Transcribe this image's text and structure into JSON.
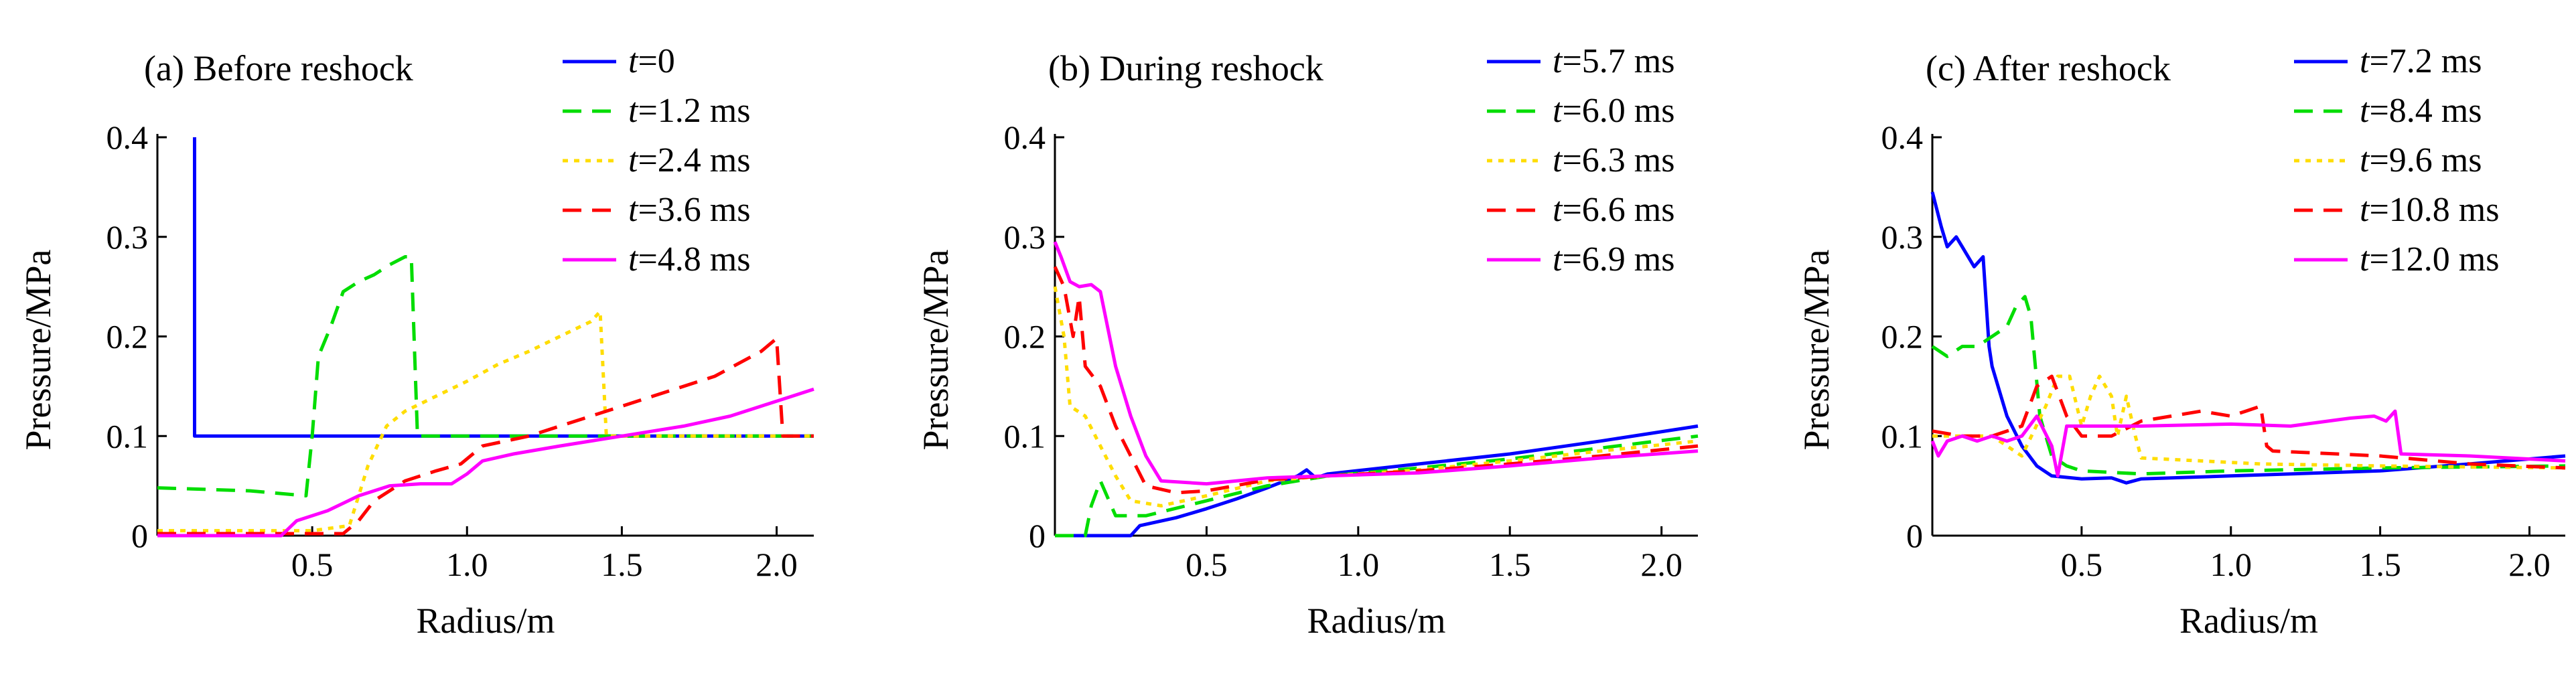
{
  "page": {
    "background": "#ffffff"
  },
  "chart_data": [
    {
      "type": "line",
      "title": "(a) Before reshock",
      "xlabel": "Radius/m",
      "ylabel": "Pressure/MPa",
      "xlim": [
        0,
        2.12
      ],
      "ylim": [
        0,
        0.4
      ],
      "xticks": [
        0.5,
        1.0,
        1.5,
        2.0
      ],
      "xtick_labels": [
        "0.5",
        "1.0",
        "1.5",
        "2.0"
      ],
      "yticks": [
        0,
        0.1,
        0.2,
        0.3,
        0.4
      ],
      "ytick_labels": [
        "0",
        "0.1",
        "0.2",
        "0.3",
        "0.4"
      ],
      "grid": false,
      "legend": "top-right-outside",
      "series": [
        {
          "var": "t",
          "eq": "=",
          "value": "0",
          "color": "#0000ff",
          "dash": "solid",
          "x": [
            0.12,
            0.12,
            0.12,
            2.12
          ],
          "y": [
            0.4,
            0.1,
            0.1,
            0.1
          ]
        },
        {
          "var": "t",
          "eq": "=",
          "value": "1.2 ms",
          "color": "#00dd00",
          "dash": "dashed",
          "x": [
            0.0,
            0.3,
            0.48,
            0.5,
            0.52,
            0.56,
            0.6,
            0.65,
            0.7,
            0.75,
            0.8,
            0.82,
            0.84,
            2.12
          ],
          "y": [
            0.048,
            0.045,
            0.04,
            0.1,
            0.18,
            0.21,
            0.245,
            0.255,
            0.262,
            0.272,
            0.28,
            0.28,
            0.1,
            0.1
          ]
        },
        {
          "var": "t",
          "eq": "=",
          "value": "2.4 ms",
          "color": "#ffdd00",
          "dash": "dotted",
          "x": [
            0.0,
            0.5,
            0.62,
            0.68,
            0.74,
            0.8,
            0.9,
            1.0,
            1.1,
            1.2,
            1.3,
            1.4,
            1.43,
            1.45,
            2.12
          ],
          "y": [
            0.005,
            0.005,
            0.01,
            0.07,
            0.11,
            0.125,
            0.14,
            0.155,
            0.172,
            0.185,
            0.2,
            0.215,
            0.225,
            0.1,
            0.1
          ]
        },
        {
          "var": "t",
          "eq": "=",
          "value": "3.6 ms",
          "color": "#ff0000",
          "dash": "dashed",
          "x": [
            0.0,
            0.6,
            0.65,
            0.7,
            0.8,
            0.9,
            0.98,
            1.05,
            1.2,
            1.4,
            1.6,
            1.8,
            1.95,
            2.0,
            2.02,
            2.12
          ],
          "y": [
            0.002,
            0.002,
            0.015,
            0.035,
            0.055,
            0.065,
            0.072,
            0.09,
            0.1,
            0.12,
            0.14,
            0.16,
            0.185,
            0.198,
            0.1,
            0.1
          ]
        },
        {
          "var": "t",
          "eq": "=",
          "value": "4.8 ms",
          "color": "#ff00ff",
          "dash": "solid",
          "x": [
            0.0,
            0.4,
            0.45,
            0.55,
            0.65,
            0.75,
            0.85,
            0.95,
            1.0,
            1.05,
            1.15,
            1.3,
            1.5,
            1.7,
            1.85,
            1.95,
            2.05,
            2.12
          ],
          "y": [
            0.0,
            0.0,
            0.015,
            0.025,
            0.04,
            0.05,
            0.052,
            0.052,
            0.062,
            0.075,
            0.082,
            0.09,
            0.1,
            0.11,
            0.12,
            0.13,
            0.14,
            0.147
          ]
        }
      ]
    },
    {
      "type": "line",
      "title": "(b) During reshock",
      "xlabel": "Radius/m",
      "ylabel": "Pressure/MPa",
      "xlim": [
        0,
        2.12
      ],
      "ylim": [
        0,
        0.4
      ],
      "xticks": [
        0.5,
        1.0,
        1.5,
        2.0
      ],
      "xtick_labels": [
        "0.5",
        "1.0",
        "1.5",
        "2.0"
      ],
      "yticks": [
        0,
        0.1,
        0.2,
        0.3,
        0.4
      ],
      "ytick_labels": [
        "0",
        "0.1",
        "0.2",
        "0.3",
        "0.4"
      ],
      "grid": false,
      "legend": "top-right-outside",
      "series": [
        {
          "var": "t",
          "eq": "=",
          "value": "5.7 ms",
          "color": "#0000ff",
          "dash": "solid",
          "x": [
            0.0,
            0.25,
            0.28,
            0.4,
            0.5,
            0.6,
            0.7,
            0.8,
            0.83,
            0.86,
            0.9,
            1.2,
            1.5,
            1.8,
            2.12
          ],
          "y": [
            0.0,
            0.0,
            0.01,
            0.018,
            0.027,
            0.037,
            0.048,
            0.06,
            0.066,
            0.058,
            0.062,
            0.072,
            0.082,
            0.095,
            0.11
          ]
        },
        {
          "var": "t",
          "eq": "=",
          "value": "6.0 ms",
          "color": "#00dd00",
          "dash": "dashed",
          "x": [
            0.0,
            0.1,
            0.12,
            0.15,
            0.2,
            0.3,
            0.5,
            0.7,
            0.9,
            1.2,
            1.5,
            1.8,
            2.12
          ],
          "y": [
            0.0,
            0.0,
            0.03,
            0.055,
            0.02,
            0.02,
            0.035,
            0.05,
            0.06,
            0.068,
            0.077,
            0.088,
            0.1
          ]
        },
        {
          "var": "t",
          "eq": "=",
          "value": "6.3 ms",
          "color": "#ffdd00",
          "dash": "dotted",
          "x": [
            0.0,
            0.03,
            0.05,
            0.1,
            0.15,
            0.2,
            0.25,
            0.35,
            0.5,
            0.7,
            0.9,
            1.2,
            1.5,
            1.8,
            2.12
          ],
          "y": [
            0.25,
            0.2,
            0.13,
            0.12,
            0.09,
            0.06,
            0.035,
            0.03,
            0.04,
            0.055,
            0.06,
            0.066,
            0.075,
            0.085,
            0.095
          ]
        },
        {
          "var": "t",
          "eq": "=",
          "value": "6.6 ms",
          "color": "#ff0000",
          "dash": "dashed",
          "x": [
            0.0,
            0.03,
            0.06,
            0.08,
            0.1,
            0.15,
            0.2,
            0.25,
            0.3,
            0.4,
            0.5,
            0.7,
            0.9,
            1.2,
            1.5,
            1.8,
            2.12
          ],
          "y": [
            0.27,
            0.25,
            0.2,
            0.24,
            0.17,
            0.15,
            0.11,
            0.08,
            0.05,
            0.043,
            0.045,
            0.056,
            0.06,
            0.065,
            0.072,
            0.08,
            0.09
          ]
        },
        {
          "var": "t",
          "eq": "=",
          "value": "6.9 ms",
          "color": "#ff00ff",
          "dash": "solid",
          "x": [
            0.0,
            0.02,
            0.05,
            0.08,
            0.12,
            0.15,
            0.2,
            0.25,
            0.3,
            0.35,
            0.5,
            0.7,
            0.9,
            1.2,
            1.5,
            1.8,
            2.12
          ],
          "y": [
            0.295,
            0.28,
            0.255,
            0.25,
            0.252,
            0.245,
            0.17,
            0.12,
            0.08,
            0.055,
            0.052,
            0.058,
            0.06,
            0.063,
            0.07,
            0.078,
            0.085
          ]
        }
      ]
    },
    {
      "type": "line",
      "title": "(c) After reshock",
      "xlabel": "Radius/m",
      "ylabel": "Pressure/MPa",
      "xlim": [
        0,
        2.12
      ],
      "ylim": [
        0,
        0.4
      ],
      "xticks": [
        0.5,
        1.0,
        1.5,
        2.0
      ],
      "xtick_labels": [
        "0.5",
        "1.0",
        "1.5",
        "2.0"
      ],
      "yticks": [
        0,
        0.1,
        0.2,
        0.3,
        0.4
      ],
      "ytick_labels": [
        "0",
        "0.1",
        "0.2",
        "0.3",
        "0.4"
      ],
      "grid": false,
      "legend": "top-right-outside",
      "series": [
        {
          "var": "t",
          "eq": "=",
          "value": "7.2 ms",
          "color": "#0000ff",
          "dash": "solid",
          "x": [
            0.0,
            0.03,
            0.05,
            0.08,
            0.1,
            0.14,
            0.17,
            0.19,
            0.2,
            0.25,
            0.3,
            0.35,
            0.4,
            0.5,
            0.6,
            0.65,
            0.7,
            1.0,
            1.5,
            1.8,
            2.12
          ],
          "y": [
            0.345,
            0.31,
            0.29,
            0.3,
            0.29,
            0.27,
            0.28,
            0.19,
            0.17,
            0.12,
            0.09,
            0.07,
            0.06,
            0.057,
            0.058,
            0.053,
            0.057,
            0.06,
            0.065,
            0.072,
            0.08
          ]
        },
        {
          "var": "t",
          "eq": "=",
          "value": "8.4 ms",
          "color": "#00dd00",
          "dash": "dashed",
          "x": [
            0.0,
            0.05,
            0.1,
            0.15,
            0.2,
            0.25,
            0.28,
            0.31,
            0.33,
            0.36,
            0.4,
            0.45,
            0.5,
            0.7,
            1.0,
            1.5,
            2.12
          ],
          "y": [
            0.19,
            0.18,
            0.19,
            0.19,
            0.2,
            0.21,
            0.23,
            0.24,
            0.22,
            0.12,
            0.08,
            0.07,
            0.065,
            0.062,
            0.065,
            0.068,
            0.07
          ]
        },
        {
          "var": "t",
          "eq": "=",
          "value": "9.6 ms",
          "color": "#ffdd00",
          "dash": "dotted",
          "x": [
            0.0,
            0.2,
            0.3,
            0.38,
            0.42,
            0.46,
            0.5,
            0.53,
            0.56,
            0.6,
            0.62,
            0.65,
            0.68,
            0.7,
            0.9,
            1.1,
            1.5,
            2.12
          ],
          "y": [
            0.1,
            0.1,
            0.08,
            0.13,
            0.16,
            0.16,
            0.11,
            0.14,
            0.16,
            0.14,
            0.1,
            0.14,
            0.1,
            0.078,
            0.075,
            0.072,
            0.07,
            0.068
          ]
        },
        {
          "var": "t",
          "eq": "=",
          "value": "10.8 ms",
          "color": "#ff0000",
          "dash": "dashed",
          "x": [
            0.0,
            0.1,
            0.2,
            0.3,
            0.35,
            0.4,
            0.45,
            0.5,
            0.6,
            0.7,
            0.8,
            0.9,
            1.0,
            1.05,
            1.1,
            1.12,
            1.14,
            1.5,
            1.8,
            2.12
          ],
          "y": [
            0.105,
            0.1,
            0.1,
            0.11,
            0.15,
            0.16,
            0.12,
            0.1,
            0.1,
            0.115,
            0.12,
            0.125,
            0.12,
            0.125,
            0.13,
            0.09,
            0.085,
            0.08,
            0.072,
            0.068
          ]
        },
        {
          "var": "t",
          "eq": "=",
          "value": "12.0 ms",
          "color": "#ff00ff",
          "dash": "solid",
          "x": [
            0.0,
            0.02,
            0.05,
            0.1,
            0.15,
            0.2,
            0.25,
            0.3,
            0.35,
            0.4,
            0.42,
            0.45,
            0.5,
            0.7,
            1.0,
            1.2,
            1.4,
            1.48,
            1.52,
            1.55,
            1.57,
            1.8,
            2.12
          ],
          "y": [
            0.095,
            0.08,
            0.095,
            0.1,
            0.095,
            0.1,
            0.095,
            0.1,
            0.12,
            0.09,
            0.06,
            0.11,
            0.11,
            0.11,
            0.112,
            0.11,
            0.118,
            0.12,
            0.115,
            0.125,
            0.082,
            0.08,
            0.075
          ]
        }
      ]
    }
  ]
}
